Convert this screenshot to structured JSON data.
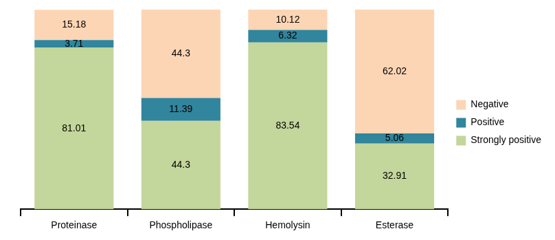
{
  "chart_data": {
    "type": "bar",
    "stacked": true,
    "categories": [
      "Proteinase",
      "Phospholipase",
      "Hemolysin",
      "Esterase"
    ],
    "series": [
      {
        "name": "Strongly positive",
        "color": "#c3d69b",
        "values": [
          81.01,
          44.3,
          83.54,
          32.91
        ]
      },
      {
        "name": "Positive",
        "color": "#31859c",
        "values": [
          3.71,
          11.39,
          6.32,
          5.06
        ]
      },
      {
        "name": "Negative",
        "color": "#fcd5b5",
        "values": [
          15.18,
          44.3,
          10.12,
          62.02
        ]
      }
    ],
    "ylim": [
      0,
      100
    ],
    "data_labels": true,
    "legend": "right",
    "grid": false,
    "tick_labels": "x"
  }
}
